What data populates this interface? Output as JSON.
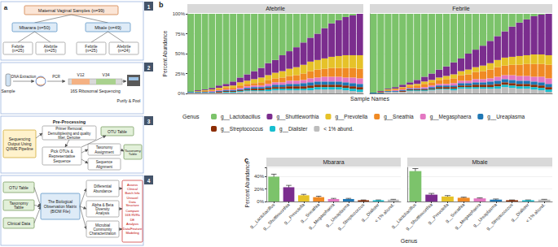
{
  "diagram": {
    "panel_label": "a",
    "step1": {
      "number": 1,
      "root": "Maternal Vaginal Samples (n=99)",
      "sites": [
        {
          "label": "Mbarara (n=50)",
          "groups": [
            "Febrile (n=25)",
            "Afebrile (n=25)"
          ]
        },
        {
          "label": "Mbale (n=49)",
          "groups": [
            "Febrile (n=25)",
            "Afebrile (n=24)"
          ]
        }
      ]
    },
    "step2": {
      "number": 2,
      "sample": "Sample",
      "extraction": "DNA Extraction",
      "pcr": "PCR",
      "regions": [
        "V12",
        "V34"
      ],
      "sequencing": "16S Ribosomal Sequencing",
      "purify": "Purify & Pool"
    },
    "step3": {
      "number": 3,
      "input": "Sequencing Output Using QIIME Pipeline",
      "preprocess_title": "Pre-Processing",
      "preprocess": "Primer Removal, Demultiplexing and quality filter, Denoise",
      "otu_pick": "Pick OTUs & Representative Sequence",
      "taxonomy": "Taxonomy Assignment",
      "alignment": "Sequence Alignment",
      "otu_table": "OTU Table",
      "taxonomy_table": "Taxonomy Table"
    },
    "step4": {
      "number": 4,
      "inputs": [
        "OTU Table",
        "Taxonomy Table",
        "Clinical Data"
      ],
      "biom": "The Biological Observation Matrix (BIOM File)",
      "analyses": [
        "Differential Abundance",
        "Alpha & Beta Diversity Analysis",
        "Microbial Community Characterization"
      ],
      "outcomes": [
        "Assess Clinical Batch Info",
        "Unravel Data Structure",
        "Compare 16S RVRs",
        "DE Analysis",
        "Data/Feature Modeling"
      ]
    }
  },
  "chart_data": [
    {
      "type": "bar",
      "panel_label": "b",
      "title": "Afebrile",
      "y_label": "Percent Abundance",
      "x_label": "Sample Names",
      "legend_title": "Genus",
      "legend": "bottom",
      "stacked": true,
      "tick_labels": "y",
      "grid": true,
      "categories": [
        null,
        null,
        null,
        null,
        null,
        null,
        null,
        null,
        null,
        null,
        null,
        null,
        null,
        null,
        null,
        null,
        null,
        null,
        null,
        null,
        null,
        null,
        null,
        null,
        null
      ],
      "ylim": [
        0,
        100
      ],
      "yticks": [
        {
          "value": 0,
          "label": "0%"
        },
        {
          "value": 25,
          "label": "25%"
        },
        {
          "value": 50,
          "label": "50%"
        },
        {
          "value": 75,
          "label": "75%"
        },
        {
          "value": 100,
          "label": "100%"
        }
      ],
      "series": [
        {
          "name": "g__Lactobacillus",
          "color": "#7cc36b",
          "values": [
            98,
            96,
            95,
            93,
            90,
            88,
            85,
            80,
            76,
            72,
            68,
            62,
            58,
            52,
            47,
            42,
            36,
            30,
            25,
            18,
            12,
            8,
            4,
            2,
            0
          ]
        },
        {
          "name": "g__Shuttleworthia",
          "color": "#7b2d8e",
          "values": [
            0,
            1,
            1,
            2,
            3,
            3,
            5,
            6,
            8,
            10,
            12,
            15,
            16,
            20,
            22,
            25,
            28,
            30,
            33,
            38,
            42,
            45,
            48,
            50,
            52
          ]
        },
        {
          "name": "g__Prevotella",
          "color": "#e6c229",
          "values": [
            0,
            1,
            1,
            1,
            2,
            2,
            3,
            4,
            4,
            5,
            6,
            6,
            7,
            8,
            9,
            10,
            11,
            12,
            12,
            13,
            14,
            15,
            16,
            16,
            17
          ]
        },
        {
          "name": "g__Sneathia",
          "color": "#f08a24",
          "values": [
            0,
            0,
            1,
            1,
            1,
            2,
            2,
            3,
            3,
            3,
            4,
            5,
            5,
            6,
            6,
            7,
            8,
            9,
            10,
            10,
            11,
            11,
            12,
            12,
            12
          ]
        },
        {
          "name": "g__Megasphaera",
          "color": "#e377c2",
          "values": [
            0,
            0,
            0,
            1,
            1,
            1,
            1,
            2,
            2,
            2,
            2,
            3,
            3,
            3,
            4,
            4,
            4,
            5,
            5,
            6,
            6,
            6,
            6,
            7,
            7
          ]
        },
        {
          "name": "g__Ureaplasma",
          "color": "#1f77b4",
          "values": [
            1,
            1,
            1,
            1,
            1,
            1,
            1,
            1,
            2,
            2,
            2,
            2,
            3,
            3,
            3,
            3,
            4,
            4,
            4,
            4,
            4,
            4,
            4,
            4,
            4
          ]
        },
        {
          "name": "g__Streptococcus",
          "color": "#8c2d04",
          "values": [
            0,
            0,
            0,
            0,
            1,
            1,
            1,
            1,
            1,
            2,
            2,
            2,
            2,
            2,
            3,
            3,
            3,
            3,
            3,
            3,
            3,
            3,
            3,
            3,
            3
          ]
        },
        {
          "name": "g__Dialister",
          "color": "#17becf",
          "values": [
            0,
            0,
            0,
            0,
            0,
            1,
            1,
            1,
            1,
            1,
            1,
            2,
            2,
            2,
            2,
            2,
            2,
            3,
            3,
            3,
            3,
            3,
            3,
            3,
            3
          ]
        },
        {
          "name": "< 1% abund.",
          "color": "#bdbdbd",
          "values": [
            1,
            1,
            1,
            1,
            1,
            1,
            1,
            2,
            3,
            3,
            3,
            3,
            4,
            4,
            4,
            4,
            4,
            4,
            5,
            5,
            5,
            5,
            4,
            3,
            2
          ]
        }
      ]
    },
    {
      "type": "bar",
      "title": "Febrile",
      "stacked": true,
      "tick_labels": false,
      "grid": true,
      "categories": [
        null,
        null,
        null,
        null,
        null,
        null,
        null,
        null,
        null,
        null,
        null,
        null,
        null,
        null,
        null,
        null,
        null,
        null,
        null,
        null,
        null,
        null,
        null,
        null,
        null
      ],
      "ylim": [
        0,
        100
      ],
      "yticks": [
        {
          "value": 0,
          "label": "0%"
        },
        {
          "value": 25,
          "label": "25%"
        },
        {
          "value": 50,
          "label": "50%"
        },
        {
          "value": 75,
          "label": "75%"
        },
        {
          "value": 100,
          "label": "100%"
        }
      ],
      "series": [
        {
          "name": "g__Lactobacillus",
          "color": "#7cc36b",
          "values": [
            99,
            97,
            94,
            92,
            89,
            86,
            83,
            79,
            75,
            70,
            66,
            61,
            56,
            50,
            45,
            40,
            34,
            28,
            22,
            16,
            11,
            7,
            3,
            1,
            0
          ]
        },
        {
          "name": "g__Shuttleworthia",
          "color": "#7b2d8e",
          "values": [
            0,
            1,
            1,
            2,
            3,
            3,
            5,
            6,
            8,
            10,
            12,
            15,
            16,
            20,
            22,
            25,
            28,
            30,
            33,
            38,
            42,
            45,
            48,
            50,
            52
          ]
        },
        {
          "name": "g__Prevotella",
          "color": "#e6c229",
          "values": [
            0,
            0,
            1,
            1,
            1,
            2,
            2,
            3,
            3,
            3,
            4,
            5,
            5,
            6,
            6,
            7,
            8,
            9,
            10,
            10,
            11,
            11,
            12,
            12,
            12
          ]
        },
        {
          "name": "g__Sneathia",
          "color": "#f08a24",
          "values": [
            0,
            1,
            1,
            1,
            2,
            2,
            3,
            4,
            4,
            5,
            6,
            6,
            7,
            8,
            9,
            10,
            11,
            12,
            12,
            13,
            14,
            15,
            16,
            16,
            17
          ]
        },
        {
          "name": "g__Megasphaera",
          "color": "#e377c2",
          "values": [
            0,
            0,
            0,
            1,
            1,
            1,
            1,
            2,
            2,
            2,
            2,
            3,
            3,
            3,
            4,
            4,
            4,
            5,
            5,
            6,
            6,
            6,
            6,
            7,
            7
          ]
        },
        {
          "name": "g__Ureaplasma",
          "color": "#1f77b4",
          "values": [
            1,
            1,
            1,
            1,
            1,
            1,
            1,
            1,
            2,
            2,
            2,
            2,
            3,
            3,
            3,
            3,
            4,
            4,
            4,
            4,
            4,
            4,
            4,
            4,
            4
          ]
        },
        {
          "name": "g__Streptococcus",
          "color": "#8c2d04",
          "values": [
            0,
            0,
            0,
            0,
            1,
            1,
            1,
            1,
            1,
            2,
            2,
            2,
            2,
            2,
            3,
            3,
            3,
            3,
            3,
            3,
            3,
            3,
            3,
            3,
            3
          ]
        },
        {
          "name": "g__Dialister",
          "color": "#17becf",
          "values": [
            0,
            0,
            0,
            0,
            0,
            1,
            1,
            1,
            1,
            1,
            1,
            2,
            2,
            2,
            2,
            2,
            2,
            3,
            3,
            3,
            3,
            3,
            3,
            3,
            3
          ]
        },
        {
          "name": "< 1% abund.",
          "color": "#bdbdbd",
          "values": [
            0,
            0,
            2,
            2,
            2,
            3,
            3,
            3,
            4,
            5,
            5,
            4,
            6,
            6,
            6,
            6,
            6,
            6,
            8,
            7,
            6,
            6,
            5,
            4,
            2
          ]
        }
      ]
    },
    {
      "type": "bar",
      "panel_label": "c",
      "title": "Mbarara",
      "y_label": "Percent Abundance",
      "x_label": "Genus",
      "tick_labels": true,
      "grid": true,
      "categories": [
        "g__Lactobacillus",
        "g__Shuttleworthia",
        "g__Prevotella",
        "g__Sneathia",
        "g__Megasphaera",
        "g__Ureaplasma",
        "g__Streptococcus",
        "g__Dialister",
        "< 1% abund."
      ],
      "values": [
        40,
        23,
        10,
        7,
        4,
        4,
        2,
        2,
        3
      ],
      "errors": [
        4,
        3,
        1.5,
        1.5,
        1,
        1,
        0.5,
        0.5,
        0.5
      ],
      "colors": [
        "#7cc36b",
        "#7b2d8e",
        "#e6c229",
        "#f08a24",
        "#e377c2",
        "#1f77b4",
        "#8c2d04",
        "#17becf",
        "#bdbdbd"
      ],
      "ylim": [
        0,
        55
      ],
      "yticks": [
        {
          "value": 0,
          "label": "0%"
        },
        {
          "value": 20,
          "label": "20%"
        },
        {
          "value": 40,
          "label": "40%"
        }
      ]
    },
    {
      "type": "bar",
      "title": "Mbale",
      "tick_labels": "x",
      "grid": true,
      "categories": [
        "g__Lactobacillus",
        "g__Shuttleworthia",
        "g__Prevotella",
        "g__Sneathia",
        "g__Megasphaera",
        "g__Ureaplasma",
        "g__Streptococcus",
        "g__Dialister",
        "< 1% abund."
      ],
      "values": [
        49,
        11,
        8,
        6,
        5,
        3,
        2,
        2,
        3
      ],
      "errors": [
        4,
        2,
        1.5,
        1,
        1,
        1,
        0.5,
        0.5,
        0.5
      ],
      "colors": [
        "#7cc36b",
        "#7b2d8e",
        "#e6c229",
        "#f08a24",
        "#e377c2",
        "#1f77b4",
        "#8c2d04",
        "#17becf",
        "#bdbdbd"
      ],
      "ylim": [
        0,
        55
      ],
      "yticks": [
        {
          "value": 0,
          "label": "0%"
        },
        {
          "value": 20,
          "label": "20%"
        },
        {
          "value": 40,
          "label": "40%"
        }
      ]
    }
  ]
}
